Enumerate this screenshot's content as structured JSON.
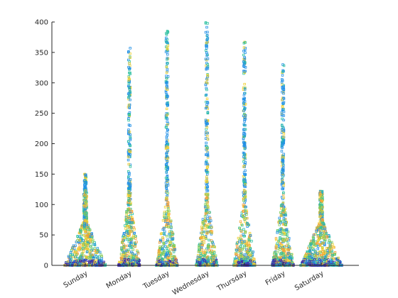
{
  "chart_data": {
    "type": "scatter",
    "title": "",
    "xlabel": "",
    "ylabel": "",
    "categories": [
      "Sunday",
      "Monday",
      "Tuesday",
      "Wednesday",
      "Thursday",
      "Friday",
      "Saturday"
    ],
    "ylim": [
      0,
      400
    ],
    "yticks": [
      0,
      50,
      100,
      150,
      200,
      250,
      300,
      350,
      400
    ],
    "grid": false,
    "legend": "none",
    "marker": "open-square",
    "category_max": [
      150,
      357,
      385,
      399,
      367,
      330,
      122
    ],
    "colors": {
      "axis": "#262626",
      "low": "#3e26a8",
      "mid_blue": "#1f8fe6",
      "teal": "#2cc0a0",
      "green": "#80cb58",
      "yellow": "#f0d030",
      "orange": "#f5a33a"
    }
  }
}
